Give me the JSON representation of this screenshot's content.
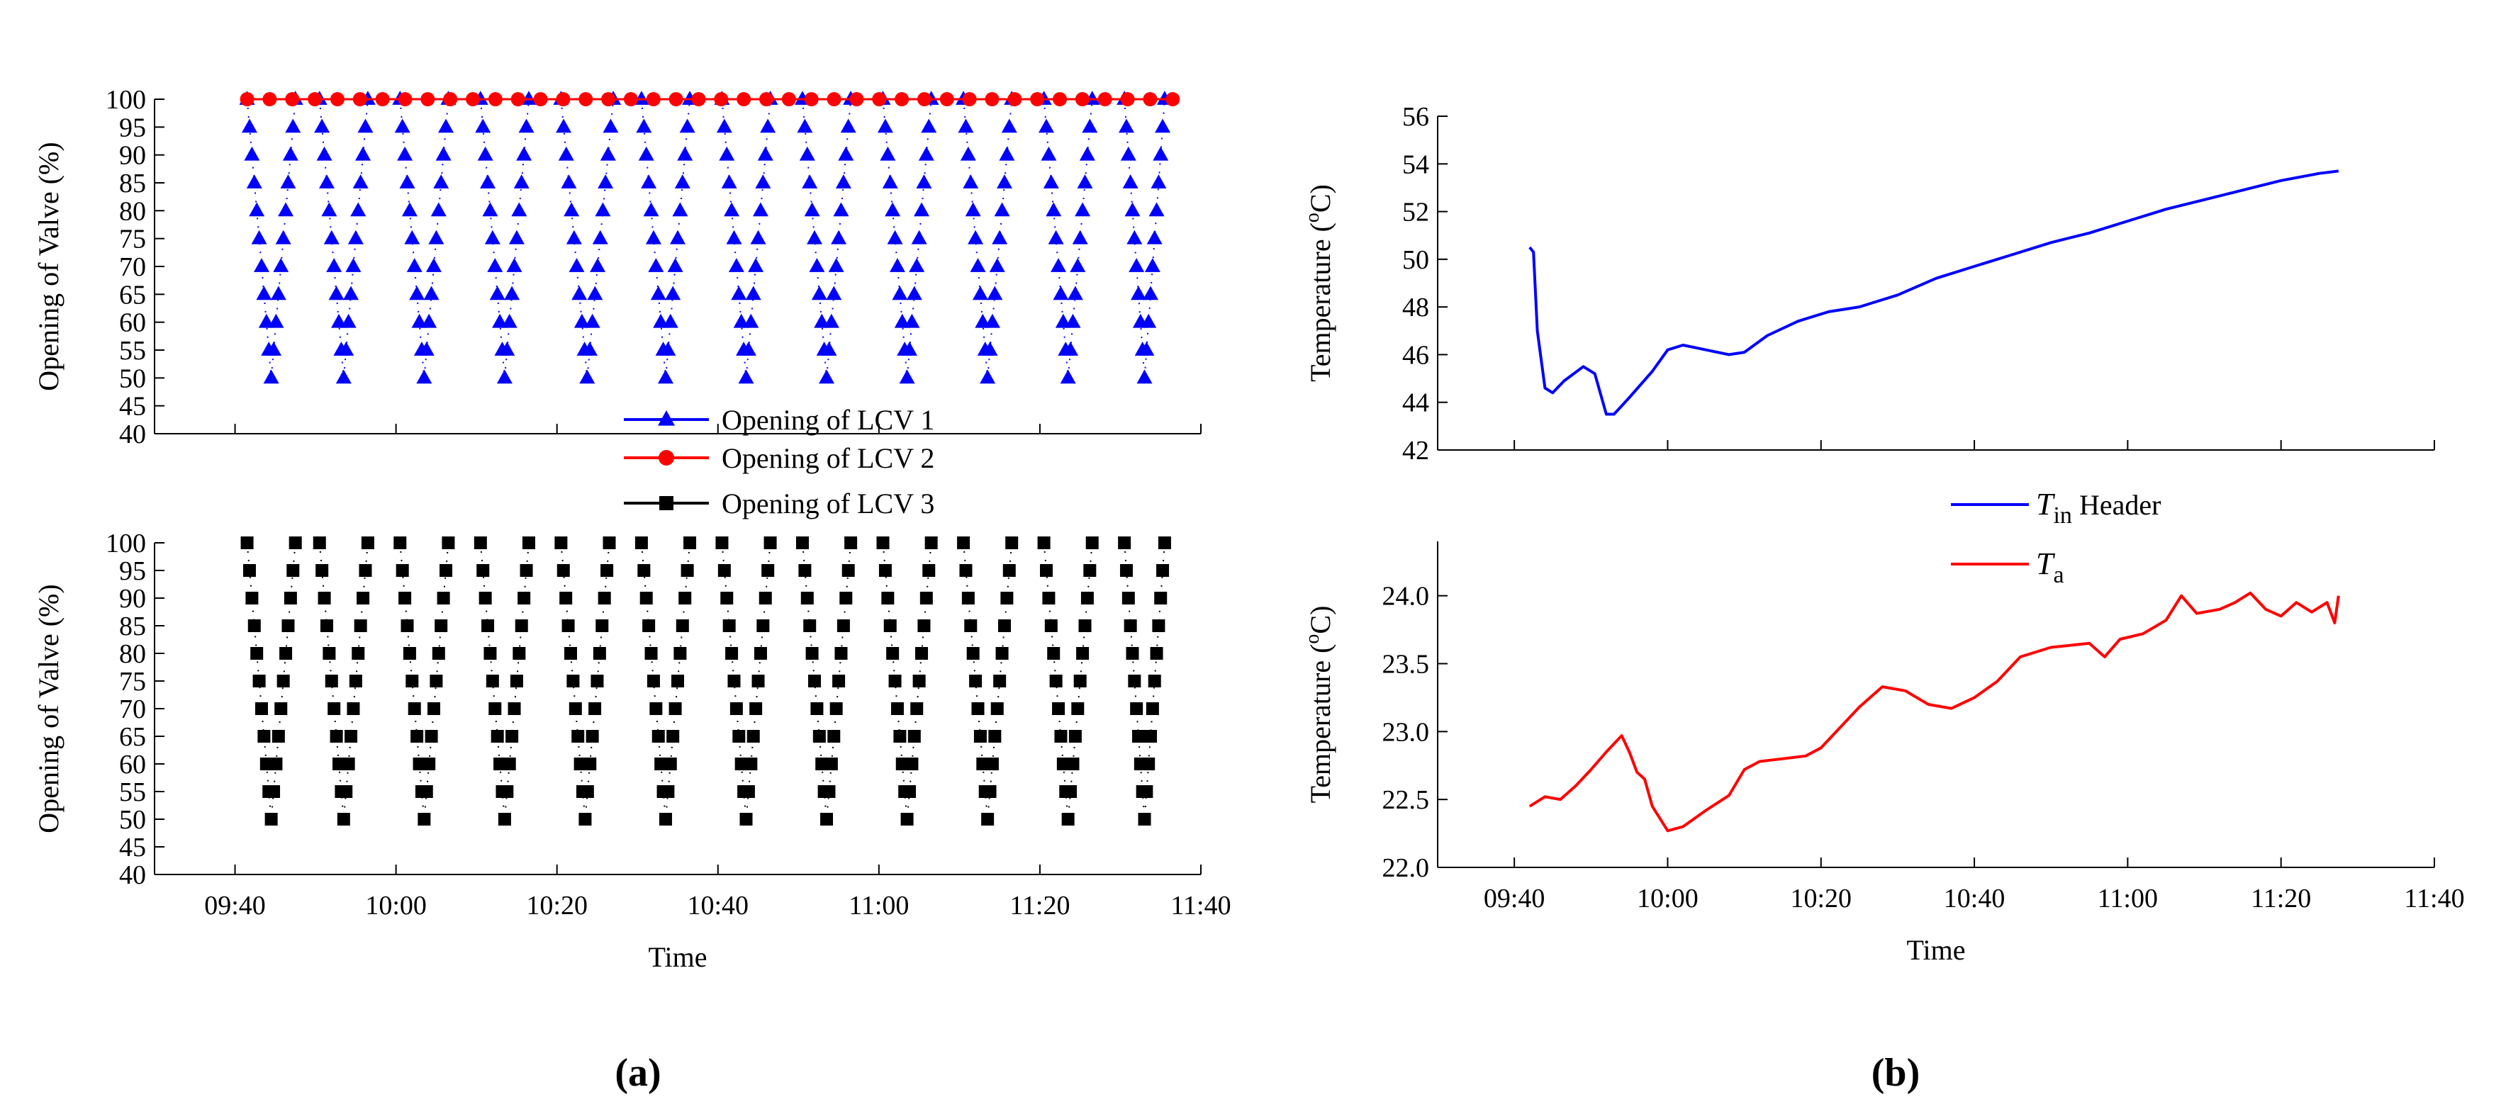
{
  "panels": {
    "a": "a",
    "b": "b"
  },
  "colors": {
    "lcv1": "#0000ff",
    "lcv2": "#ff0000",
    "lcv3": "#000000",
    "tin": "#0000ff",
    "ta": "#ff0000"
  },
  "chart_data": [
    {
      "type": "scatter",
      "panel": "a-top",
      "ylabel": "Opening of Valve (%)",
      "ylim": [
        40,
        100
      ],
      "yticks": [
        "40",
        "45",
        "50",
        "55",
        "60",
        "65",
        "70",
        "75",
        "80",
        "85",
        "90",
        "95",
        "100"
      ],
      "xlim_minutes": [
        570,
        700
      ],
      "series": [
        {
          "name": "Opening of LCV 1",
          "marker": "triangle",
          "color": "#0000ff",
          "cycles": [
            [
              581.5,
              587.5
            ],
            [
              590.5,
              596.5
            ],
            [
              600.5,
              606.5
            ],
            [
              610.5,
              616.5
            ],
            [
              620.5,
              627.0
            ],
            [
              630.5,
              636.5
            ],
            [
              640.5,
              646.5
            ],
            [
              650.5,
              656.5
            ],
            [
              660.5,
              666.5
            ],
            [
              670.5,
              676.5
            ],
            [
              680.5,
              686.5
            ],
            [
              690.5,
              695.5
            ]
          ],
          "min_values": [
            50,
            50,
            50,
            50,
            50,
            50,
            50,
            50,
            50,
            50,
            50,
            50
          ],
          "range": [
            50,
            100
          ]
        },
        {
          "name": "Opening of LCV 2",
          "marker": "circle",
          "color": "#ff0000",
          "x_start": 581.5,
          "x_end": 696.5,
          "count": 42,
          "value": 100
        }
      ]
    },
    {
      "type": "scatter",
      "panel": "a-bottom",
      "ylabel": "Opening of Valve (%)",
      "xlabel": "Time",
      "ylim": [
        40,
        100
      ],
      "yticks": [
        "40",
        "45",
        "50",
        "55",
        "60",
        "65",
        "70",
        "75",
        "80",
        "85",
        "90",
        "95",
        "100"
      ],
      "xlim_minutes": [
        570,
        700
      ],
      "xticks": [
        "09:40",
        "10:00",
        "10:20",
        "10:40",
        "11:00",
        "11:20",
        "11:40"
      ],
      "series": [
        {
          "name": "Opening of LCV 3",
          "marker": "square",
          "color": "#000000",
          "cycles": [
            [
              581.5,
              587.5
            ],
            [
              590.5,
              596.5
            ],
            [
              600.5,
              606.5
            ],
            [
              610.5,
              616.5
            ],
            [
              620.5,
              626.5
            ],
            [
              630.5,
              636.5
            ],
            [
              640.5,
              646.5
            ],
            [
              650.5,
              656.5
            ],
            [
              660.5,
              666.5
            ],
            [
              670.5,
              676.5
            ],
            [
              680.5,
              686.5
            ],
            [
              690.5,
              695.5
            ]
          ],
          "range": [
            50,
            100
          ]
        }
      ]
    },
    {
      "type": "line",
      "panel": "b-top",
      "ylabel": "Temperature (oC)",
      "ylim": [
        42,
        56
      ],
      "yticks": [
        "42",
        "44",
        "46",
        "48",
        "50",
        "52",
        "54",
        "56"
      ],
      "xlim_minutes": [
        570,
        700
      ],
      "series": [
        {
          "name": "Tin Header",
          "color": "#0000ff",
          "points": [
            [
              582.0,
              50.5
            ],
            [
              582.5,
              50.3
            ],
            [
              583.0,
              47.0
            ],
            [
              584.0,
              44.6
            ],
            [
              585.0,
              44.4
            ],
            [
              586.5,
              44.9
            ],
            [
              589.0,
              45.5
            ],
            [
              590.5,
              45.2
            ],
            [
              592.0,
              43.5
            ],
            [
              593.0,
              43.5
            ],
            [
              595.0,
              44.2
            ],
            [
              598.0,
              45.3
            ],
            [
              600.0,
              46.2
            ],
            [
              602.0,
              46.4
            ],
            [
              605.0,
              46.2
            ],
            [
              608.0,
              46.0
            ],
            [
              610.0,
              46.1
            ],
            [
              613.0,
              46.8
            ],
            [
              617.0,
              47.4
            ],
            [
              621.0,
              47.8
            ],
            [
              625.0,
              48.0
            ],
            [
              630.0,
              48.5
            ],
            [
              635.0,
              49.2
            ],
            [
              640.0,
              49.7
            ],
            [
              645.0,
              50.2
            ],
            [
              650.0,
              50.7
            ],
            [
              655.0,
              51.1
            ],
            [
              660.0,
              51.6
            ],
            [
              665.0,
              52.1
            ],
            [
              670.0,
              52.5
            ],
            [
              675.0,
              52.9
            ],
            [
              680.0,
              53.3
            ],
            [
              685.0,
              53.6
            ],
            [
              687.5,
              53.7
            ]
          ]
        }
      ]
    },
    {
      "type": "line",
      "panel": "b-bottom",
      "ylabel": "Temperature (oC)",
      "xlabel": "Time",
      "ylim": [
        22.0,
        24.4
      ],
      "yticks": [
        "22.0",
        "22.5",
        "23.0",
        "23.5",
        "24.0"
      ],
      "xlim_minutes": [
        570,
        700
      ],
      "xticks": [
        "09:40",
        "10:00",
        "10:20",
        "10:40",
        "11:00",
        "11:20",
        "11:40"
      ],
      "series": [
        {
          "name": "Ta",
          "color": "#ff0000",
          "points": [
            [
              582.0,
              22.45
            ],
            [
              584.0,
              22.52
            ],
            [
              586.0,
              22.5
            ],
            [
              588.0,
              22.6
            ],
            [
              590.0,
              22.72
            ],
            [
              592.0,
              22.85
            ],
            [
              594.0,
              22.97
            ],
            [
              595.0,
              22.85
            ],
            [
              596.0,
              22.7
            ],
            [
              597.0,
              22.65
            ],
            [
              598.0,
              22.45
            ],
            [
              600.0,
              22.27
            ],
            [
              602.0,
              22.3
            ],
            [
              605.0,
              22.42
            ],
            [
              608.0,
              22.53
            ],
            [
              610.0,
              22.72
            ],
            [
              612.0,
              22.78
            ],
            [
              615.0,
              22.8
            ],
            [
              618.0,
              22.82
            ],
            [
              620.0,
              22.88
            ],
            [
              622.0,
              23.0
            ],
            [
              625.0,
              23.18
            ],
            [
              628.0,
              23.33
            ],
            [
              631.0,
              23.3
            ],
            [
              634.0,
              23.2
            ],
            [
              637.0,
              23.17
            ],
            [
              640.0,
              23.25
            ],
            [
              643.0,
              23.37
            ],
            [
              646.0,
              23.55
            ],
            [
              650.0,
              23.62
            ],
            [
              655.0,
              23.65
            ],
            [
              657.0,
              23.55
            ],
            [
              659.0,
              23.68
            ],
            [
              662.0,
              23.72
            ],
            [
              665.0,
              23.82
            ],
            [
              667.0,
              24.0
            ],
            [
              669.0,
              23.87
            ],
            [
              672.0,
              23.9
            ],
            [
              674.0,
              23.95
            ],
            [
              676.0,
              24.02
            ],
            [
              678.0,
              23.9
            ],
            [
              680.0,
              23.85
            ],
            [
              682.0,
              23.95
            ],
            [
              684.0,
              23.88
            ],
            [
              686.0,
              23.95
            ],
            [
              687.0,
              23.8
            ],
            [
              687.5,
              24.0
            ]
          ]
        }
      ]
    }
  ],
  "legend_a": [
    {
      "name": "Opening of LCV 1",
      "marker": "triangle",
      "color": "#0000ff"
    },
    {
      "name": "Opening of LCV 2",
      "marker": "circle",
      "color": "#ff0000"
    },
    {
      "name": "Opening of LCV 3",
      "marker": "square",
      "color": "#000000"
    }
  ],
  "legend_b": [
    {
      "name_main": "T",
      "name_sub": "in",
      "name_rest": " Header",
      "color": "#0000ff"
    },
    {
      "name_main": "T",
      "name_sub": "a",
      "name_rest": "",
      "color": "#ff0000"
    }
  ]
}
